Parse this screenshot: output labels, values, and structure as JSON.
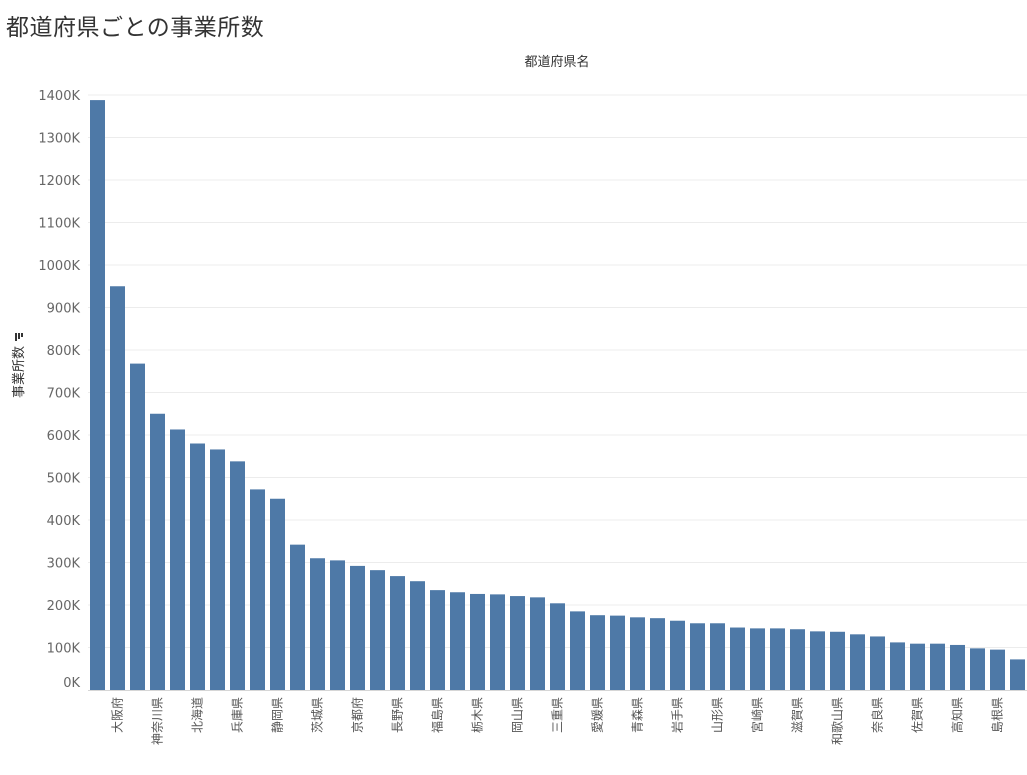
{
  "page": {
    "title": "都道府県ごとの事業所数"
  },
  "chart_data": {
    "type": "bar",
    "xlabel": "都道府県名",
    "ylabel": "事業所数",
    "ylabel_icon": "sort-descending-icon",
    "ylim": [
      0,
      1400000
    ],
    "yticks": [
      0,
      100000,
      200000,
      300000,
      400000,
      500000,
      600000,
      700000,
      800000,
      900000,
      1000000,
      1100000,
      1200000,
      1300000,
      1400000
    ],
    "ytick_labels": [
      "0K",
      "100K",
      "200K",
      "300K",
      "400K",
      "500K",
      "600K",
      "700K",
      "800K",
      "900K",
      "1000K",
      "1100K",
      "1200K",
      "1300K",
      "1400K"
    ],
    "grid": true,
    "bar_color": "#4e79a7",
    "categories": [
      "",
      "大阪府",
      "",
      "神奈川県",
      "",
      "北海道",
      "",
      "兵庫県",
      "",
      "静岡県",
      "",
      "茨城県",
      "",
      "京都府",
      "",
      "長野県",
      "",
      "福島県",
      "",
      "栃木県",
      "",
      "岡山県",
      "",
      "三重県",
      "",
      "愛媛県",
      "",
      "青森県",
      "",
      "岩手県",
      "",
      "山形県",
      "",
      "宮崎県",
      "",
      "滋賀県",
      "",
      "和歌山県",
      "",
      "奈良県",
      "",
      "佐賀県",
      "",
      "高知県",
      "",
      "島根県",
      ""
    ],
    "values": [
      1388000,
      950000,
      768000,
      650000,
      613000,
      580000,
      566000,
      538000,
      472000,
      450000,
      342000,
      310000,
      305000,
      292000,
      282000,
      268000,
      256000,
      235000,
      230000,
      226000,
      225000,
      221000,
      218000,
      204000,
      185000,
      176000,
      175000,
      171000,
      169000,
      163000,
      157000,
      157000,
      147000,
      145000,
      145000,
      143000,
      138000,
      137000,
      131000,
      126000,
      112000,
      109000,
      109000,
      106000,
      98000,
      95000,
      72000
    ]
  }
}
